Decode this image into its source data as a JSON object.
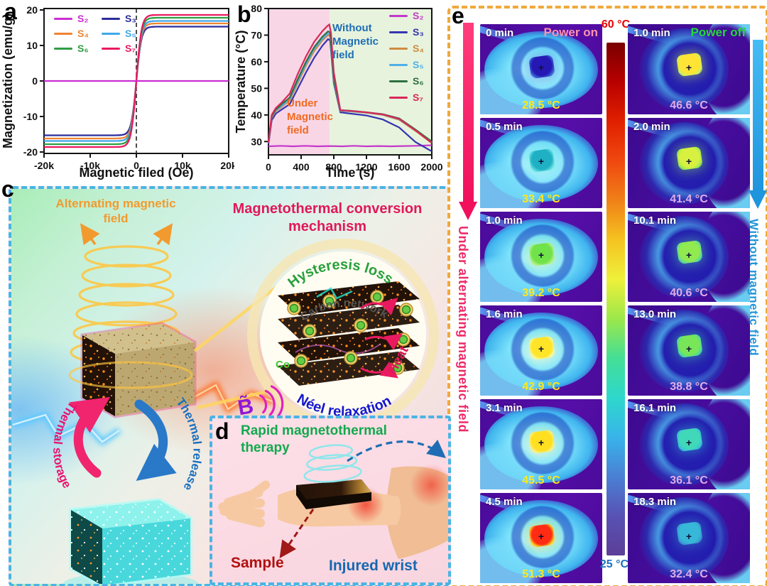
{
  "panels": {
    "a": "a",
    "b": "b",
    "c": "c",
    "d": "d",
    "e": "e"
  },
  "chart_data": [
    {
      "panel": "a",
      "type": "line",
      "title": "",
      "xlabel": "Magnetic filed (Oe)",
      "ylabel": "Magnetization (emu/g)",
      "xlim": [
        -20000,
        20000
      ],
      "ylim": [
        -20,
        20
      ],
      "xticks": [
        {
          "v": -20000,
          "label": "-20k"
        },
        {
          "v": -10000,
          "label": "-10k"
        },
        {
          "v": 0,
          "label": "0"
        },
        {
          "v": 10000,
          "label": "10k"
        },
        {
          "v": 20000,
          "label": "20k"
        }
      ],
      "yticks": [
        -20,
        -10,
        0,
        10,
        20
      ],
      "curve_model": "M = Ms*tanh(H/h0), zero coercivity sigmoid loops",
      "h0": 1100,
      "zero_field_dashed_line": true,
      "series": [
        {
          "name": "S₂",
          "color": "#cb2dd2",
          "saturation_emu_g": 0
        },
        {
          "name": "S₃",
          "color": "#2c2c9c",
          "saturation_emu_g": 15.3
        },
        {
          "name": "S₄",
          "color": "#ef8432",
          "saturation_emu_g": 16.2
        },
        {
          "name": "S₅",
          "color": "#3fa8e8",
          "saturation_emu_g": 16.9
        },
        {
          "name": "S₆",
          "color": "#2f9e44",
          "saturation_emu_g": 17.8
        },
        {
          "name": "S₇",
          "color": "#ea1a60",
          "saturation_emu_g": 18.6
        }
      ]
    },
    {
      "panel": "b",
      "type": "line",
      "title": "",
      "xlabel": "Time (s)",
      "ylabel": "Temperature (°C)",
      "xlim": [
        0,
        2000
      ],
      "ylim": [
        25,
        80
      ],
      "xticks": [
        0,
        400,
        800,
        1200,
        1600,
        2000
      ],
      "yticks": [
        30,
        40,
        50,
        60,
        70,
        80
      ],
      "regions": [
        {
          "label": "Under Magnetic field",
          "x": [
            0,
            750
          ],
          "fill": "#f8d6e6",
          "label_color": "#f26a21"
        },
        {
          "label": "Without Magnetic field",
          "x": [
            750,
            2000
          ],
          "fill": "#e7f3dd",
          "label_color": "#1f6eb5"
        }
      ],
      "series": [
        {
          "name": "S₂",
          "color": "#c438cc",
          "points": [
            [
              0,
              28.2
            ],
            [
              150,
              28.4
            ],
            [
              300,
              28.2
            ],
            [
              450,
              28.4
            ],
            [
              600,
              28.2
            ],
            [
              750,
              28.3
            ],
            [
              900,
              28.2
            ],
            [
              1050,
              28.4
            ],
            [
              1200,
              28.2
            ],
            [
              1350,
              28.3
            ],
            [
              1500,
              28.2
            ],
            [
              1650,
              28.3
            ],
            [
              1800,
              28.4
            ],
            [
              2000,
              28.6
            ]
          ]
        },
        {
          "name": "S₃",
          "color": "#3535b0",
          "points": [
            [
              0,
              29
            ],
            [
              40,
              38
            ],
            [
              90,
              40.5
            ],
            [
              160,
              42
            ],
            [
              260,
              44
            ],
            [
              360,
              50
            ],
            [
              460,
              56
            ],
            [
              560,
              61.5
            ],
            [
              660,
              66
            ],
            [
              730,
              68.5
            ],
            [
              755,
              68
            ],
            [
              800,
              52
            ],
            [
              880,
              41
            ],
            [
              1000,
              40.5
            ],
            [
              1200,
              39.8
            ],
            [
              1400,
              38.3
            ],
            [
              1600,
              35.3
            ],
            [
              1800,
              29.8
            ],
            [
              2000,
              26.3
            ]
          ]
        },
        {
          "name": "S₄",
          "color": "#d08a3e",
          "points": [
            [
              0,
              29.5
            ],
            [
              40,
              39
            ],
            [
              90,
              41.5
            ],
            [
              160,
              43
            ],
            [
              260,
              45.5
            ],
            [
              360,
              52
            ],
            [
              460,
              58.5
            ],
            [
              560,
              64
            ],
            [
              660,
              68
            ],
            [
              730,
              70
            ],
            [
              755,
              69.6
            ],
            [
              800,
              53
            ],
            [
              880,
              41.5
            ],
            [
              1000,
              41.3
            ],
            [
              1200,
              40.8
            ],
            [
              1400,
              40
            ],
            [
              1600,
              38.2
            ],
            [
              1800,
              34
            ],
            [
              2000,
              29.4
            ]
          ]
        },
        {
          "name": "S₅",
          "color": "#4fb0e8",
          "points": [
            [
              0,
              29.6
            ],
            [
              40,
              39.4
            ],
            [
              90,
              41.8
            ],
            [
              160,
              43.4
            ],
            [
              260,
              46
            ],
            [
              360,
              52.8
            ],
            [
              460,
              59.2
            ],
            [
              560,
              64.8
            ],
            [
              660,
              68.6
            ],
            [
              730,
              70.6
            ],
            [
              755,
              70.2
            ],
            [
              800,
              53.4
            ],
            [
              880,
              41.6
            ],
            [
              1000,
              41.4
            ],
            [
              1200,
              40.9
            ],
            [
              1400,
              40.1
            ],
            [
              1600,
              38.4
            ],
            [
              1800,
              34.2
            ],
            [
              2000,
              29.7
            ]
          ]
        },
        {
          "name": "S₆",
          "color": "#2f7040",
          "points": [
            [
              0,
              30
            ],
            [
              40,
              39.6
            ],
            [
              90,
              42
            ],
            [
              160,
              44
            ],
            [
              260,
              46.5
            ],
            [
              360,
              53.5
            ],
            [
              460,
              60
            ],
            [
              560,
              65.5
            ],
            [
              660,
              69.4
            ],
            [
              730,
              71.4
            ],
            [
              755,
              71
            ],
            [
              800,
              54
            ],
            [
              880,
              41.8
            ],
            [
              1000,
              41.6
            ],
            [
              1200,
              41
            ],
            [
              1400,
              40.3
            ],
            [
              1600,
              38.7
            ],
            [
              1800,
              34.5
            ],
            [
              2000,
              30
            ]
          ]
        },
        {
          "name": "S₇",
          "color": "#d82858",
          "points": [
            [
              0,
              29.6
            ],
            [
              40,
              40
            ],
            [
              90,
              42.6
            ],
            [
              160,
              44.6
            ],
            [
              260,
              48
            ],
            [
              360,
              55.5
            ],
            [
              460,
              62
            ],
            [
              560,
              67.5
            ],
            [
              660,
              71.5
            ],
            [
              720,
              73.4
            ],
            [
              745,
              74
            ],
            [
              765,
              71
            ],
            [
              800,
              56
            ],
            [
              880,
              41.8
            ],
            [
              1000,
              41.5
            ],
            [
              1200,
              41
            ],
            [
              1400,
              40.2
            ],
            [
              1600,
              38.5
            ],
            [
              1800,
              34.2
            ],
            [
              2000,
              29.5
            ]
          ]
        }
      ]
    }
  ],
  "panel_c": {
    "field_label": "Alternating magnetic field",
    "title": "Magnetothermal conversion mechanism",
    "mechanism": {
      "top": "Hysteresis loss",
      "network": "Carbon network",
      "bottom": "Néel relaxation",
      "heat": "Heat",
      "particle": "Co",
      "field_symbol": "B̃"
    },
    "cycle": {
      "storage": "Thermal storage",
      "release": "Thermal release"
    },
    "colors": {
      "field_label": "#f29a2e",
      "title": "#e0185a",
      "hysteresis": "#27a03c",
      "network": "#555555",
      "neel": "#1717cc",
      "heat": "#e0185a",
      "storage": "#e8146e",
      "release": "#1a6fc0"
    }
  },
  "panel_d": {
    "title": "Rapid magnetothermal therapy",
    "sample_label": "Sample",
    "wrist_label": "Injured wrist",
    "colors": {
      "title": "#12a94e",
      "sample": "#b01010",
      "wrist": "#1668b0"
    }
  },
  "panel_e": {
    "power_on": "Power on",
    "power_off": "Power off",
    "marker": "+",
    "left_arrow_label": "Under alternating magnetic field",
    "right_arrow_label": "Without magnetic field",
    "colorbar": {
      "top_label": "60 °C",
      "bottom_label": "25 °C",
      "top_temp_c": 60,
      "bottom_temp_c": 25,
      "gradient": [
        "#7a0000",
        "#b80000",
        "#e02000",
        "#f04810",
        "#f08018",
        "#f5c320",
        "#eef03a",
        "#9ce84a",
        "#44de96",
        "#2ed8cc",
        "#38b4ea",
        "#4a80d4",
        "#5852b4",
        "#5c3e98"
      ]
    },
    "left_column": [
      {
        "time": "0 min",
        "temp": "28.5 °C",
        "core_color": "#2618b4",
        "halo_color": "#3a6ad8"
      },
      {
        "time": "0.5 min",
        "temp": "33.4 °C",
        "core_color": "#1fb0c4",
        "halo_color": "#66e0e0"
      },
      {
        "time": "1.0 min",
        "temp": "39.2 °C",
        "core_color": "#70e24a",
        "halo_color": "#b8f088"
      },
      {
        "time": "1.6 min",
        "temp": "42.9 °C",
        "core_color": "#ffe428",
        "halo_color": "#f8f8a0"
      },
      {
        "time": "3.1 min",
        "temp": "45.5 °C",
        "core_color": "#ffdf20",
        "halo_color": "#f8f090"
      },
      {
        "time": "4.5 min",
        "temp": "51.3 °C",
        "core_color": "#ff2b12",
        "halo_color": "#ffd826"
      }
    ],
    "right_column": [
      {
        "time": "1.0 min",
        "temp": "46.6 °C",
        "core_color": "#ffe435",
        "halo_color": "#c8f060"
      },
      {
        "time": "2.0 min",
        "temp": "41.4 °C",
        "core_color": "#d8f040",
        "halo_color": "#90e858"
      },
      {
        "time": "10.1 min",
        "temp": "40.6 °C",
        "core_color": "#90ea50",
        "halo_color": "#58d8a0"
      },
      {
        "time": "13.0 min",
        "temp": "38.8 °C",
        "core_color": "#78e658",
        "halo_color": "#48d8a8"
      },
      {
        "time": "16.1 min",
        "temp": "36.1 °C",
        "core_color": "#40d8b8",
        "halo_color": "#38c0d8"
      },
      {
        "time": "18.3 min",
        "temp": "32.4 °C",
        "core_color": "#38b8d8",
        "halo_color": "#3898d0"
      }
    ]
  }
}
